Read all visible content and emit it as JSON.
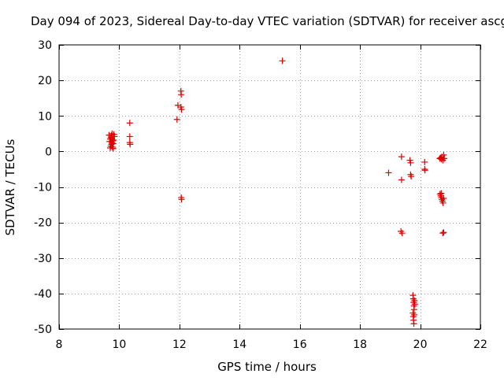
{
  "chart_data": {
    "type": "scatter",
    "title": "Day 094 of 2023, Sidereal Day-to-day VTEC variation (SDTVAR) for receiver ascg",
    "xlabel": "GPS time / hours",
    "ylabel": "SDTVAR / TECUs",
    "xlim": [
      8,
      22
    ],
    "ylim": [
      -50,
      30
    ],
    "xticks": [
      8,
      10,
      12,
      14,
      16,
      18,
      20,
      22
    ],
    "yticks": [
      -50,
      -40,
      -30,
      -20,
      -10,
      0,
      10,
      20,
      30
    ],
    "grid": true,
    "marker": "+",
    "series": [
      {
        "name": "SDTVAR",
        "color": "#e00000",
        "points": [
          [
            9.7,
            1.0
          ],
          [
            9.72,
            1.5
          ],
          [
            9.74,
            2.0
          ],
          [
            9.76,
            2.5
          ],
          [
            9.78,
            3.0
          ],
          [
            9.7,
            3.5
          ],
          [
            9.72,
            4.0
          ],
          [
            9.74,
            4.5
          ],
          [
            9.76,
            5.0
          ],
          [
            9.78,
            1.2
          ],
          [
            9.8,
            2.2
          ],
          [
            9.82,
            3.2
          ],
          [
            9.84,
            4.2
          ],
          [
            9.68,
            2.8
          ],
          [
            9.66,
            4.6
          ],
          [
            9.8,
            0.8
          ],
          [
            9.82,
            4.8
          ],
          [
            9.75,
            3.8
          ],
          [
            10.35,
            8.0
          ],
          [
            10.35,
            4.2
          ],
          [
            10.35,
            2.5
          ],
          [
            10.36,
            2.0
          ],
          [
            11.92,
            9.0
          ],
          [
            11.95,
            13.0
          ],
          [
            12.05,
            17.0
          ],
          [
            12.06,
            16.0
          ],
          [
            12.05,
            12.5
          ],
          [
            12.07,
            11.8
          ],
          [
            12.06,
            -13.0
          ],
          [
            12.07,
            -13.5
          ],
          [
            15.42,
            25.5
          ],
          [
            18.95,
            -6.0
          ],
          [
            19.38,
            -1.5
          ],
          [
            19.38,
            -8.0
          ],
          [
            19.36,
            -22.5
          ],
          [
            19.4,
            -23.0
          ],
          [
            19.66,
            -2.5
          ],
          [
            19.68,
            -3.2
          ],
          [
            19.68,
            -6.5
          ],
          [
            19.7,
            -7.0
          ],
          [
            19.76,
            -40.5
          ],
          [
            19.77,
            -41.5
          ],
          [
            19.78,
            -42.5
          ],
          [
            19.79,
            -43.5
          ],
          [
            19.8,
            -44.5
          ],
          [
            19.81,
            -42.0
          ],
          [
            19.76,
            -45.5
          ],
          [
            19.77,
            -46.5
          ],
          [
            19.78,
            -47.5
          ],
          [
            19.79,
            -48.5
          ],
          [
            19.8,
            -46.0
          ],
          [
            19.82,
            -43.0
          ],
          [
            20.15,
            -3.0
          ],
          [
            20.15,
            -5.0
          ],
          [
            20.16,
            -5.3
          ],
          [
            20.65,
            -2.0
          ],
          [
            20.68,
            -1.8
          ],
          [
            20.7,
            -2.2
          ],
          [
            20.72,
            -1.5
          ],
          [
            20.75,
            -2.5
          ],
          [
            20.78,
            -1.0
          ],
          [
            20.8,
            -2.0
          ],
          [
            20.66,
            -12.0
          ],
          [
            20.68,
            -12.5
          ],
          [
            20.7,
            -13.0
          ],
          [
            20.72,
            -13.5
          ],
          [
            20.74,
            -14.0
          ],
          [
            20.76,
            -14.5
          ],
          [
            20.78,
            -13.2
          ],
          [
            20.7,
            -11.8
          ],
          [
            20.75,
            -23.0
          ],
          [
            20.78,
            -22.8
          ]
        ]
      }
    ]
  }
}
